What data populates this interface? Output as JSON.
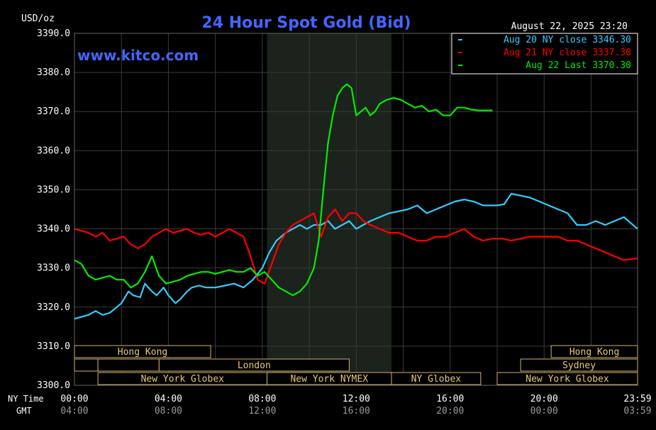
{
  "header": {
    "unit": "USD/oz",
    "title": "24 Hour Spot Gold (Bid)",
    "date": "August 22, 2025 23:20",
    "watermark": "www.kitco.com"
  },
  "legend": [
    {
      "text": "Aug 20 NY close 3346.30",
      "color": "#33ccff"
    },
    {
      "text": "Aug 21 NY close 3337.30",
      "color": "#ff0000"
    },
    {
      "text": "Aug 22 Last 3370.30",
      "color": "#00ee00"
    }
  ],
  "x_axis": {
    "ny_time_label": "NY Time",
    "gmt_label": "GMT",
    "ny_ticks": [
      "00:00",
      "04:00",
      "08:00",
      "12:00",
      "16:00",
      "20:00",
      "23:59"
    ],
    "gmt_ticks": [
      "04:00",
      "08:00",
      "12:00",
      "16:00",
      "20:00",
      "00:00",
      "03:59"
    ]
  },
  "sessions": [
    {
      "label": "Hong Kong",
      "row": 0,
      "start": 0.0,
      "end": 5.8
    },
    {
      "label": "Hong Kong",
      "row": 0,
      "start": 20.3,
      "end": 23.98
    },
    {
      "label": "",
      "row": 1,
      "start": 0.0,
      "end": 1.0
    },
    {
      "label": "London",
      "row": 1,
      "start": 3.6,
      "end": 11.7
    },
    {
      "label": "",
      "row": 1,
      "start": 1.0,
      "end": 3.6
    },
    {
      "label": "Sydney",
      "row": 1,
      "start": 19.0,
      "end": 23.98
    },
    {
      "label": "New York Globex",
      "row": 2,
      "start": 1.0,
      "end": 8.2
    },
    {
      "label": "New York NYMEX",
      "row": 2,
      "start": 8.2,
      "end": 13.5
    },
    {
      "label": "NY Globex",
      "row": 2,
      "start": 13.5,
      "end": 17.3
    },
    {
      "label": "New York Globex",
      "row": 2,
      "start": 18.0,
      "end": 23.98
    }
  ],
  "chart_data": {
    "type": "line",
    "title": "24 Hour Spot Gold (Bid)",
    "ylabel": "USD/oz",
    "xlabel": "NY Time",
    "xlim": [
      0,
      23.98
    ],
    "ylim": [
      3300,
      3390
    ],
    "yticks": [
      3300,
      3310,
      3320,
      3330,
      3340,
      3350,
      3360,
      3370,
      3380,
      3390
    ],
    "ytick_labels": [
      "3300.0",
      "3310.0",
      "3320.0",
      "3330.0",
      "3340.0",
      "3350.0",
      "3360.0",
      "3370.0",
      "3380.0",
      "3390.0"
    ],
    "grid": true,
    "shaded_range": [
      8.2,
      13.5
    ],
    "legend_position": "top-right",
    "series": [
      {
        "name": "Aug 20 NY close 3346.30",
        "color": "#33ccff",
        "x": [
          0.0,
          0.3,
          0.6,
          0.9,
          1.2,
          1.5,
          1.8,
          2.0,
          2.3,
          2.5,
          2.8,
          3.0,
          3.3,
          3.5,
          3.8,
          4.0,
          4.3,
          4.5,
          4.8,
          5.0,
          5.3,
          5.6,
          6.0,
          6.4,
          6.8,
          7.2,
          7.6,
          8.0,
          8.3,
          8.6,
          9.0,
          9.3,
          9.6,
          9.9,
          10.2,
          10.5,
          10.8,
          11.1,
          11.4,
          11.7,
          12.0,
          12.3,
          12.6,
          13.0,
          13.4,
          13.8,
          14.2,
          14.6,
          15.0,
          15.4,
          15.8,
          16.2,
          16.6,
          17.0,
          17.4,
          17.8,
          18.0,
          18.3,
          18.6,
          19.0,
          19.4,
          19.8,
          20.2,
          20.6,
          21.0,
          21.4,
          21.8,
          22.2,
          22.6,
          23.0,
          23.4,
          23.98
        ],
        "y": [
          3317,
          3317.5,
          3318,
          3319,
          3318,
          3318.5,
          3320,
          3321,
          3324,
          3323,
          3322.5,
          3326,
          3324,
          3323,
          3325,
          3323,
          3321,
          3322,
          3324,
          3325,
          3325.5,
          3325,
          3325,
          3325.5,
          3326,
          3325,
          3327,
          3330,
          3334,
          3337,
          3339,
          3340,
          3341,
          3340,
          3341,
          3341,
          3342,
          3340,
          3341,
          3342,
          3340,
          3341,
          3342,
          3343,
          3344,
          3344.5,
          3345,
          3346,
          3344,
          3345,
          3346,
          3347,
          3347.5,
          3347,
          3346,
          3346,
          3346,
          3346.3,
          3349,
          3348.5,
          3348,
          3347,
          3346,
          3345,
          3344,
          3341,
          3341,
          3342,
          3341,
          3342,
          3343,
          3340
        ]
      },
      {
        "name": "Aug 21 NY close 3337.30",
        "color": "#ff0000",
        "x": [
          0.0,
          0.3,
          0.6,
          0.9,
          1.2,
          1.5,
          1.8,
          2.1,
          2.4,
          2.7,
          3.0,
          3.3,
          3.6,
          3.9,
          4.2,
          4.5,
          4.8,
          5.1,
          5.4,
          5.7,
          6.0,
          6.3,
          6.6,
          6.9,
          7.2,
          7.5,
          7.8,
          8.1,
          8.4,
          8.7,
          9.0,
          9.3,
          9.6,
          9.9,
          10.2,
          10.5,
          10.8,
          11.1,
          11.4,
          11.7,
          12.0,
          12.3,
          12.6,
          13.0,
          13.4,
          13.8,
          14.2,
          14.6,
          15.0,
          15.4,
          15.8,
          16.2,
          16.6,
          17.0,
          17.4,
          17.8,
          18.2,
          18.6,
          19.0,
          19.4,
          19.8,
          20.2,
          20.6,
          21.0,
          21.4,
          21.8,
          22.2,
          22.6,
          23.0,
          23.4,
          23.98
        ],
        "y": [
          3340,
          3339.5,
          3339,
          3338,
          3339,
          3337,
          3337.5,
          3338,
          3336,
          3335,
          3336,
          3338,
          3339,
          3340,
          3339,
          3339.5,
          3340,
          3339,
          3338.5,
          3339,
          3338,
          3339,
          3340,
          3339,
          3338,
          3333,
          3327,
          3326,
          3331,
          3336,
          3339,
          3341,
          3342,
          3343,
          3344,
          3338,
          3343,
          3345,
          3342,
          3344,
          3344,
          3342,
          3341,
          3340,
          3339,
          3339,
          3338,
          3337,
          3337,
          3338,
          3338,
          3339,
          3340,
          3338,
          3337,
          3337.5,
          3337.5,
          3337,
          3337.5,
          3338,
          3338,
          3338,
          3338,
          3337,
          3337,
          3336,
          3335,
          3334,
          3333,
          3332,
          3332.5
        ]
      },
      {
        "name": "Aug 22 Last 3370.30",
        "color": "#00ee00",
        "x": [
          0.0,
          0.3,
          0.6,
          0.9,
          1.2,
          1.5,
          1.8,
          2.1,
          2.4,
          2.7,
          3.0,
          3.3,
          3.6,
          3.9,
          4.2,
          4.5,
          4.8,
          5.1,
          5.4,
          5.7,
          6.0,
          6.3,
          6.6,
          6.9,
          7.2,
          7.5,
          7.8,
          8.1,
          8.4,
          8.7,
          9.0,
          9.3,
          9.6,
          9.9,
          10.2,
          10.4,
          10.6,
          10.8,
          11.0,
          11.2,
          11.4,
          11.6,
          11.8,
          12.0,
          12.2,
          12.4,
          12.6,
          12.8,
          13.0,
          13.3,
          13.6,
          13.9,
          14.2,
          14.5,
          14.8,
          15.1,
          15.4,
          15.7,
          16.0,
          16.3,
          16.6,
          16.9,
          17.2,
          17.5,
          17.8
        ],
        "y": [
          3332,
          3331,
          3328,
          3327,
          3327.5,
          3328,
          3327,
          3327,
          3325,
          3326,
          3329,
          3333,
          3328,
          3326,
          3326.5,
          3327,
          3328,
          3328.5,
          3329,
          3329,
          3328.5,
          3329,
          3329.5,
          3329,
          3329,
          3330,
          3328,
          3329,
          3327,
          3325,
          3324,
          3323,
          3324,
          3326,
          3330,
          3337,
          3350,
          3362,
          3369,
          3374,
          3376,
          3377,
          3376,
          3369,
          3370,
          3371,
          3369,
          3370,
          3372,
          3373,
          3373.5,
          3373,
          3372,
          3371,
          3371.5,
          3370,
          3370.5,
          3369,
          3369,
          3371,
          3371,
          3370.5,
          3370.3,
          3370.3,
          3370.3
        ]
      }
    ]
  }
}
